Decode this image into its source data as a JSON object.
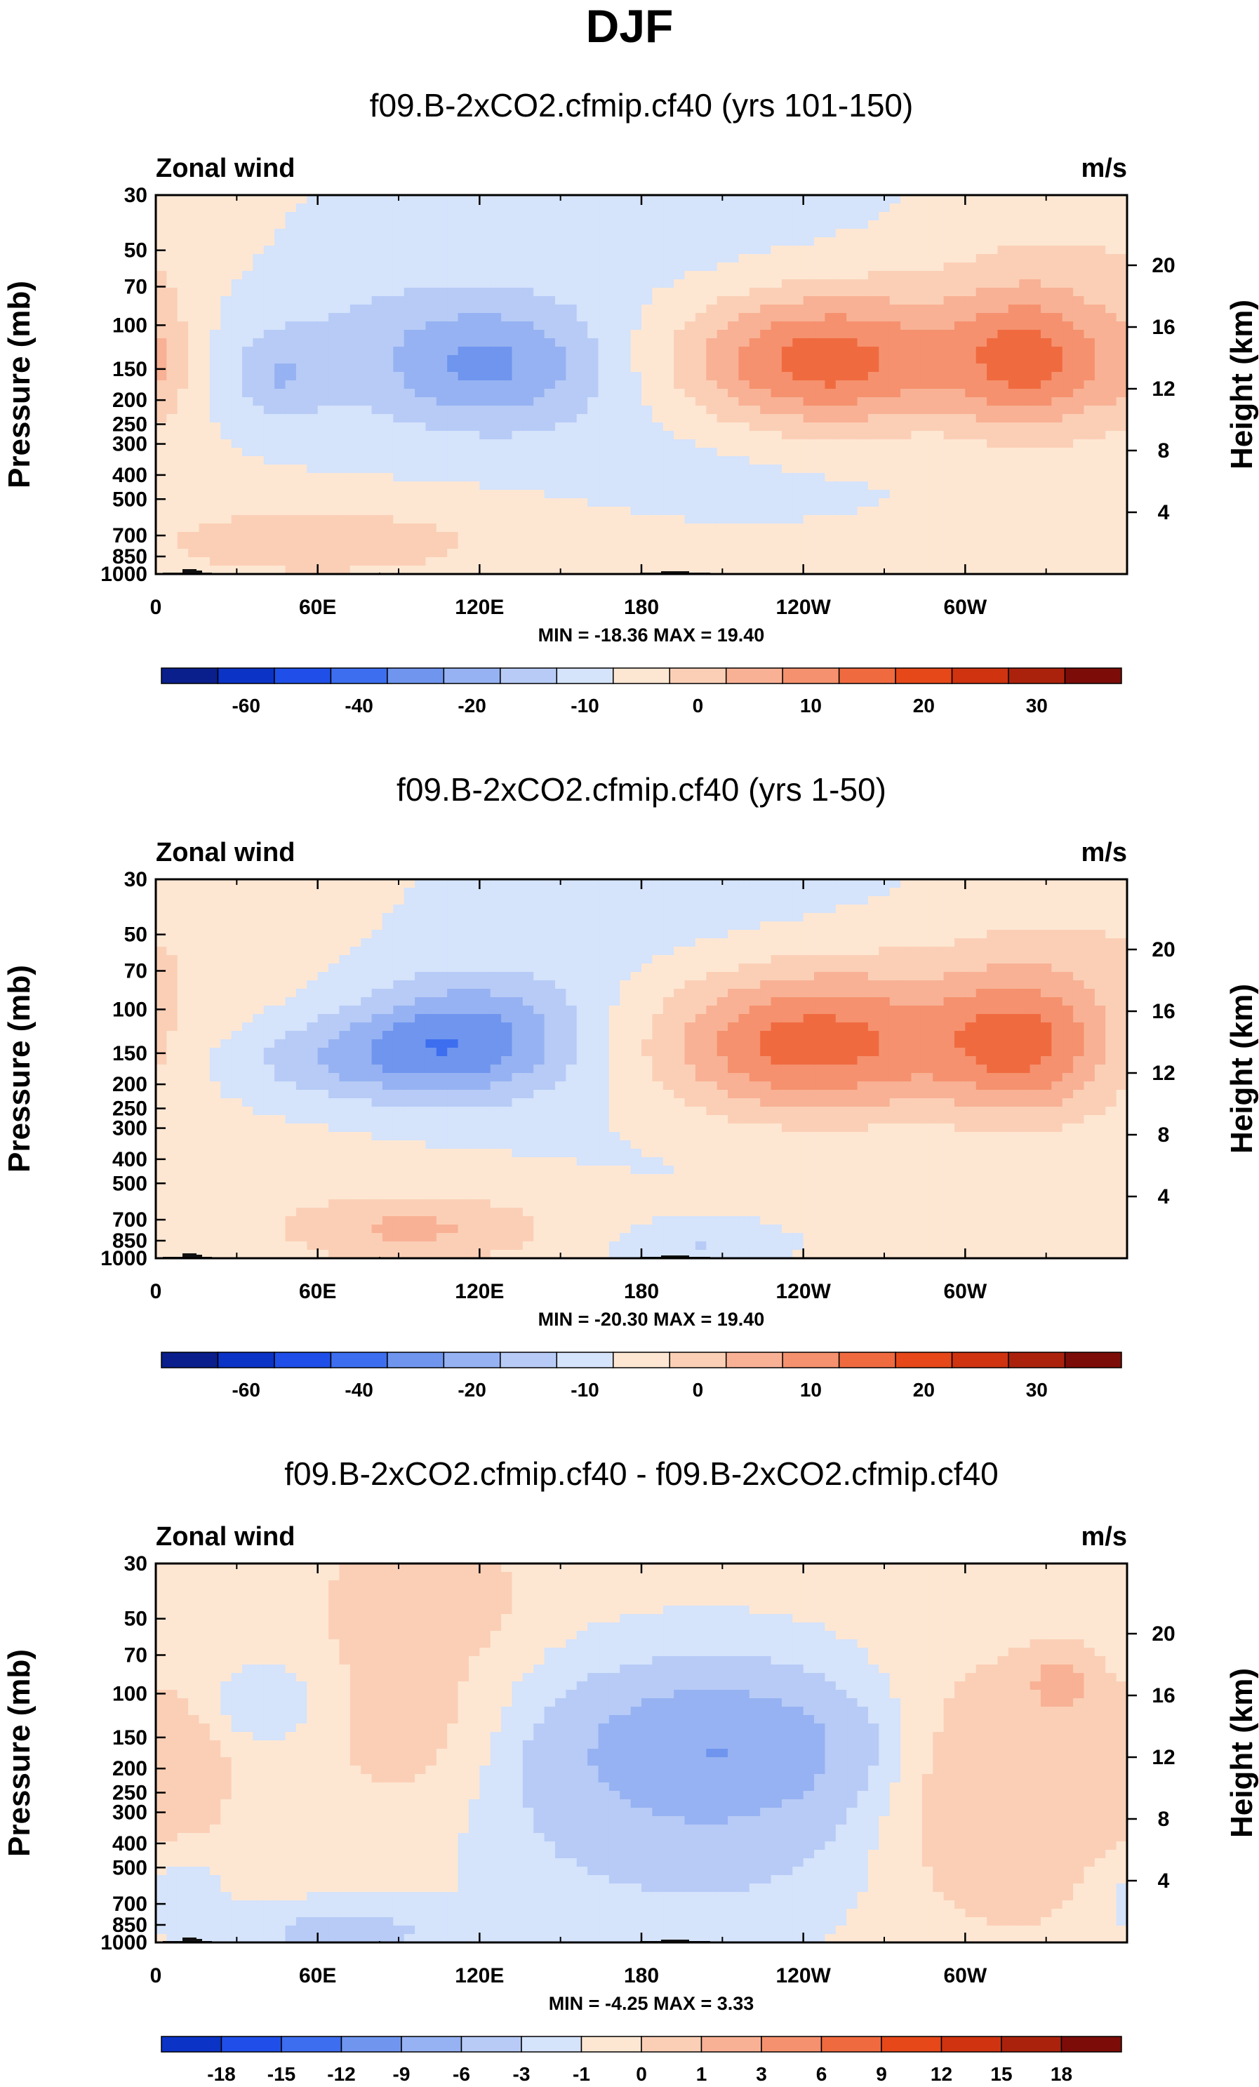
{
  "figure_title": "DJF",
  "colors": {
    "blues": [
      "#0a1f8c",
      "#0b33c6",
      "#1f4fe8",
      "#3d6ef0",
      "#6f95ee",
      "#96b2f2",
      "#b7cbf6",
      "#d5e3fb"
    ],
    "reds": [
      "#fde7d3",
      "#fbcfb6",
      "#f8b195",
      "#f5916e",
      "#f06a40",
      "#e6481a",
      "#cf3310",
      "#ab220c",
      "#7c0c08"
    ],
    "topo": "#111111"
  },
  "chart_data": [
    {
      "type": "heatmap",
      "title": "f09.B-2xCO2.cfmip.cf40 (yrs 101-150)",
      "left_label": "Zonal wind",
      "right_label": "m/s",
      "xlabel": "",
      "ylabel": "Pressure (mb)",
      "y2label": "Height (km)",
      "x_ticks": [
        "0",
        "60E",
        "120E",
        "180",
        "120W",
        "60W"
      ],
      "y_ticks": [
        "30",
        "50",
        "70",
        "100",
        "150",
        "200",
        "250",
        "300",
        "400",
        "500",
        "700",
        "850",
        "1000"
      ],
      "y2_ticks": [
        "20",
        "16",
        "12",
        "8",
        "4"
      ],
      "min_max_text": "MIN = -18.36  MAX = 19.40",
      "colorbar_labels": [
        "-60",
        "-40",
        "-20",
        "-10",
        "0",
        "10",
        "20",
        "30"
      ],
      "fields": [
        {
          "lon": 125,
          "p": 145,
          "amp": -15,
          "slon": 30,
          "slogp": 0.18
        },
        {
          "lon": 45,
          "p": 160,
          "amp": -8,
          "slon": 13,
          "slogp": 0.12
        },
        {
          "lon": 60,
          "p": 110,
          "amp": -5,
          "slon": 40,
          "slogp": 0.3
        },
        {
          "lon": 200,
          "p": 55,
          "amp": -4,
          "slon": 70,
          "slogp": 0.35
        },
        {
          "lon": 225,
          "p": 300,
          "amp": -4,
          "slon": 60,
          "slogp": 0.2
        },
        {
          "lon": 245,
          "p": 145,
          "amp": 19,
          "slon": 35,
          "slogp": 0.2
        },
        {
          "lon": 325,
          "p": 140,
          "amp": 17,
          "slon": 20,
          "slogp": 0.2
        },
        {
          "lon": 280,
          "p": 120,
          "amp": 6,
          "slon": 70,
          "slogp": 0.25
        },
        {
          "lon": 60,
          "p": 740,
          "amp": 8,
          "slon": 45,
          "slogp": 0.1
        },
        {
          "lon": 0,
          "p": 140,
          "amp": 6,
          "slon": 10,
          "slogp": 0.2
        },
        {
          "lon": 345,
          "p": 50,
          "amp": 3,
          "slon": 40,
          "slogp": 0.15
        }
      ],
      "bias": 1.0,
      "levels": [
        -60,
        -50,
        -40,
        -30,
        -20,
        -15,
        -10,
        -5,
        0,
        5,
        10,
        15,
        20,
        25,
        30,
        35,
        40
      ]
    },
    {
      "type": "heatmap",
      "title": "f09.B-2xCO2.cfmip.cf40 (yrs 1-50)",
      "left_label": "Zonal wind",
      "right_label": "m/s",
      "xlabel": "",
      "ylabel": "Pressure (mb)",
      "y2label": "Height (km)",
      "x_ticks": [
        "0",
        "60E",
        "120E",
        "180",
        "120W",
        "60W"
      ],
      "y_ticks": [
        "30",
        "50",
        "70",
        "100",
        "150",
        "200",
        "250",
        "300",
        "400",
        "500",
        "700",
        "850",
        "1000"
      ],
      "y2_ticks": [
        "20",
        "16",
        "12",
        "8",
        "4"
      ],
      "min_max_text": "MIN = -20.30  MAX = 19.40",
      "colorbar_labels": [
        "-60",
        "-40",
        "-20",
        "-10",
        "0",
        "10",
        "20",
        "30"
      ],
      "fields": [
        {
          "lon": 115,
          "p": 130,
          "amp": -17,
          "slon": 30,
          "slogp": 0.17
        },
        {
          "lon": 70,
          "p": 160,
          "amp": -9,
          "slon": 35,
          "slogp": 0.12
        },
        {
          "lon": 200,
          "p": 55,
          "amp": -4,
          "slon": 70,
          "slogp": 0.35
        },
        {
          "lon": 200,
          "p": 900,
          "amp": -6,
          "slon": 20,
          "slogp": 0.06
        },
        {
          "lon": 230,
          "p": 300,
          "amp": -3,
          "slon": 60,
          "slogp": 0.2
        },
        {
          "lon": 240,
          "p": 140,
          "amp": 19,
          "slon": 38,
          "slogp": 0.22
        },
        {
          "lon": 322,
          "p": 140,
          "amp": 16,
          "slon": 22,
          "slogp": 0.2
        },
        {
          "lon": 280,
          "p": 120,
          "amp": 6,
          "slon": 70,
          "slogp": 0.25
        },
        {
          "lon": 95,
          "p": 760,
          "amp": 10,
          "slon": 35,
          "slogp": 0.1
        },
        {
          "lon": 345,
          "p": 55,
          "amp": 3,
          "slon": 40,
          "slogp": 0.15
        }
      ],
      "bias": 1.0,
      "levels": [
        -60,
        -50,
        -40,
        -30,
        -20,
        -15,
        -10,
        -5,
        0,
        5,
        10,
        15,
        20,
        25,
        30,
        35,
        40
      ]
    },
    {
      "type": "heatmap",
      "title": "f09.B-2xCO2.cfmip.cf40 - f09.B-2xCO2.cfmip.cf40",
      "left_label": "Zonal wind",
      "right_label": "m/s",
      "xlabel": "",
      "ylabel": "Pressure (mb)",
      "y2label": "Height (km)",
      "x_ticks": [
        "0",
        "60E",
        "120E",
        "180",
        "120W",
        "60W"
      ],
      "y_ticks": [
        "30",
        "50",
        "70",
        "100",
        "150",
        "200",
        "250",
        "300",
        "400",
        "500",
        "700",
        "850",
        "1000"
      ],
      "y2_ticks": [
        "20",
        "16",
        "12",
        "8",
        "4"
      ],
      "min_max_text": "MIN =  -4.25  MAX =   3.33",
      "colorbar_labels": [
        "-18",
        "-15",
        "-12",
        "-9",
        "-6",
        "-3",
        "-1",
        "0",
        "1",
        "3",
        "6",
        "9",
        "12",
        "15",
        "18"
      ],
      "fields": [
        {
          "lon": 210,
          "p": 160,
          "amp": -4.2,
          "slon": 35,
          "slogp": 0.18
        },
        {
          "lon": 200,
          "p": 250,
          "amp": -2.5,
          "slon": 55,
          "slogp": 0.35
        },
        {
          "lon": 40,
          "p": 110,
          "amp": -1.5,
          "slon": 15,
          "slogp": 0.1
        },
        {
          "lon": 70,
          "p": 920,
          "amp": -2,
          "slon": 25,
          "slogp": 0.08
        },
        {
          "lon": 5,
          "p": 600,
          "amp": -1.2,
          "slon": 15,
          "slogp": 0.15
        },
        {
          "lon": 315,
          "p": 250,
          "amp": 2.5,
          "slon": 35,
          "slogp": 0.35
        },
        {
          "lon": 335,
          "p": 90,
          "amp": 3.3,
          "slon": 8,
          "slogp": 0.08
        },
        {
          "lon": 95,
          "p": 130,
          "amp": 1.5,
          "slon": 25,
          "slogp": 0.3
        },
        {
          "lon": 100,
          "p": 40,
          "amp": 1.6,
          "slon": 25,
          "slogp": 0.15
        },
        {
          "lon": 10,
          "p": 200,
          "amp": 1.3,
          "slon": 12,
          "slogp": 0.2
        }
      ],
      "bias": 0.3,
      "levels": [
        -18,
        -15,
        -12,
        -9,
        -6,
        -3,
        -1,
        0,
        1,
        3,
        6,
        9,
        12,
        15,
        18
      ]
    }
  ]
}
